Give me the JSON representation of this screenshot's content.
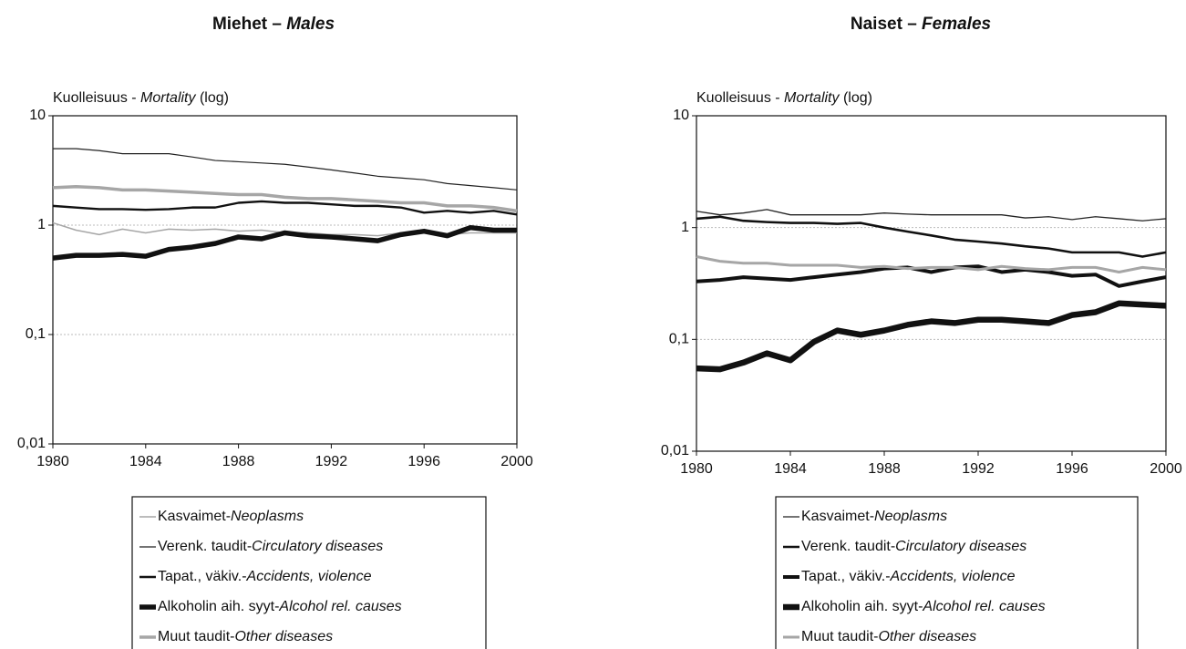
{
  "chart_data": [
    {
      "type": "line",
      "title": [
        "Miehet – ",
        "Males"
      ],
      "ylabel": [
        "Kuolleisuus - ",
        "Mortality",
        " (log)"
      ],
      "log_y": true,
      "grid": true,
      "x": [
        1980,
        1981,
        1982,
        1983,
        1984,
        1985,
        1986,
        1987,
        1988,
        1989,
        1990,
        1991,
        1992,
        1993,
        1994,
        1995,
        1996,
        1997,
        1998,
        1999,
        2000
      ],
      "xlim": [
        1980,
        2000
      ],
      "xticks": [
        1980,
        1984,
        1988,
        1992,
        1996,
        2000
      ],
      "ylim": [
        0.01,
        10
      ],
      "yticks": [
        {
          "value": 0.01,
          "label": "0,01"
        },
        {
          "value": 0.1,
          "label": "0,1"
        },
        1,
        10
      ],
      "series": [
        {
          "name": [
            "Kasvaimet-",
            "Neoplasms"
          ],
          "color": "#a6a6a6",
          "values": [
            1.05,
            0.9,
            0.82,
            0.92,
            0.85,
            0.92,
            0.9,
            0.92,
            0.88,
            0.9,
            0.85,
            0.85,
            0.82,
            0.82,
            0.8,
            0.85,
            0.85,
            0.82,
            0.85,
            0.85,
            0.85
          ]
        },
        {
          "name": [
            "Verenk. taudit-",
            "Circulatory diseases"
          ],
          "color": "#222222",
          "values": [
            5.0,
            5.0,
            4.8,
            4.5,
            4.5,
            4.5,
            4.2,
            3.9,
            3.8,
            3.7,
            3.6,
            3.4,
            3.2,
            3.0,
            2.8,
            2.7,
            2.6,
            2.4,
            2.3,
            2.2,
            2.1
          ]
        },
        {
          "name": [
            "Tapat., väkiv.-",
            "Accidents, violence"
          ],
          "color": "#111111",
          "values": [
            1.5,
            1.45,
            1.4,
            1.4,
            1.38,
            1.4,
            1.45,
            1.45,
            1.6,
            1.65,
            1.6,
            1.6,
            1.55,
            1.5,
            1.5,
            1.45,
            1.3,
            1.35,
            1.3,
            1.35,
            1.25
          ]
        },
        {
          "name": [
            "Alkoholin aih. syyt-",
            "Alcohol rel. causes"
          ],
          "color": "#111111",
          "values": [
            0.5,
            0.53,
            0.53,
            0.54,
            0.52,
            0.6,
            0.63,
            0.68,
            0.78,
            0.75,
            0.85,
            0.8,
            0.78,
            0.75,
            0.72,
            0.82,
            0.88,
            0.8,
            0.95,
            0.9,
            0.9
          ]
        },
        {
          "name": [
            "Muut taudit-",
            "Other diseases"
          ],
          "color": "#a6a6a6",
          "values": [
            2.2,
            2.25,
            2.2,
            2.1,
            2.1,
            2.05,
            2.0,
            1.95,
            1.9,
            1.9,
            1.8,
            1.75,
            1.75,
            1.7,
            1.65,
            1.6,
            1.6,
            1.5,
            1.5,
            1.45,
            1.35
          ]
        }
      ]
    },
    {
      "type": "line",
      "title": [
        "Naiset – ",
        "Females"
      ],
      "ylabel": [
        "Kuolleisuus - ",
        "Mortality",
        " (log)"
      ],
      "log_y": true,
      "grid": true,
      "x": [
        1980,
        1981,
        1982,
        1983,
        1984,
        1985,
        1986,
        1987,
        1988,
        1989,
        1990,
        1991,
        1992,
        1993,
        1994,
        1995,
        1996,
        1997,
        1998,
        1999,
        2000
      ],
      "xlim": [
        1980,
        2000
      ],
      "xticks": [
        1980,
        1984,
        1988,
        1992,
        1996,
        2000
      ],
      "ylim": [
        0.01,
        10
      ],
      "yticks": [
        {
          "value": 0.01,
          "label": "0,01"
        },
        {
          "value": 0.1,
          "label": "0,1"
        },
        1,
        10
      ],
      "series": [
        {
          "name": [
            "Kasvaimet-",
            "Neoplasms"
          ],
          "color": "#222222",
          "values": [
            1.4,
            1.3,
            1.35,
            1.45,
            1.3,
            1.3,
            1.3,
            1.3,
            1.35,
            1.32,
            1.3,
            1.3,
            1.3,
            1.3,
            1.22,
            1.25,
            1.18,
            1.25,
            1.2,
            1.15,
            1.2
          ]
        },
        {
          "name": [
            "Verenk. taudit-",
            "Circulatory diseases"
          ],
          "color": "#111111",
          "values": [
            1.2,
            1.25,
            1.15,
            1.12,
            1.1,
            1.1,
            1.08,
            1.1,
            1.0,
            0.92,
            0.85,
            0.78,
            0.75,
            0.72,
            0.68,
            0.65,
            0.6,
            0.6,
            0.6,
            0.55,
            0.6
          ]
        },
        {
          "name": [
            "Tapat., väkiv.-",
            "Accidents, violence"
          ],
          "color": "#111111",
          "values": [
            0.33,
            0.34,
            0.36,
            0.35,
            0.34,
            0.36,
            0.38,
            0.4,
            0.43,
            0.44,
            0.4,
            0.44,
            0.45,
            0.4,
            0.42,
            0.4,
            0.37,
            0.38,
            0.3,
            0.33,
            0.36
          ]
        },
        {
          "name": [
            "Alkoholin aih. syyt-",
            "Alcohol rel. causes"
          ],
          "color": "#111111",
          "values": [
            0.055,
            0.054,
            0.062,
            0.075,
            0.065,
            0.095,
            0.12,
            0.11,
            0.12,
            0.135,
            0.145,
            0.14,
            0.15,
            0.15,
            0.145,
            0.14,
            0.165,
            0.175,
            0.21,
            0.205,
            0.2
          ]
        },
        {
          "name": [
            "Muut taudit-",
            "Other diseases"
          ],
          "color": "#a6a6a6",
          "values": [
            0.55,
            0.5,
            0.48,
            0.48,
            0.46,
            0.46,
            0.46,
            0.44,
            0.45,
            0.43,
            0.44,
            0.44,
            0.42,
            0.45,
            0.43,
            0.42,
            0.44,
            0.44,
            0.4,
            0.44,
            0.42
          ]
        }
      ]
    }
  ]
}
